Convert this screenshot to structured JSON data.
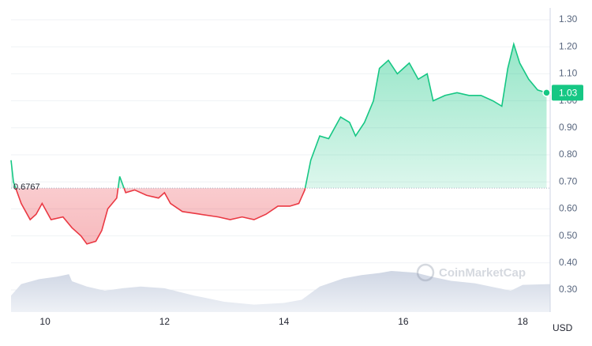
{
  "chart_data": {
    "type": "line",
    "currency": "USD",
    "watermark": "CoinMarketCap",
    "x": [
      9.43,
      9.47,
      9.6,
      9.75,
      9.85,
      9.95,
      10.1,
      10.3,
      10.45,
      10.6,
      10.7,
      10.85,
      10.95,
      11.05,
      11.2,
      11.25,
      11.35,
      11.5,
      11.7,
      11.9,
      12.0,
      12.1,
      12.3,
      12.6,
      12.9,
      13.1,
      13.3,
      13.5,
      13.7,
      13.9,
      14.1,
      14.25,
      14.35,
      14.45,
      14.6,
      14.75,
      14.95,
      15.1,
      15.2,
      15.35,
      15.5,
      15.6,
      15.75,
      15.9,
      16.1,
      16.25,
      16.4,
      16.5,
      16.7,
      16.9,
      17.1,
      17.3,
      17.5,
      17.65,
      17.75,
      17.85,
      17.95,
      18.1,
      18.25,
      18.4
    ],
    "values": [
      0.78,
      0.7,
      0.62,
      0.56,
      0.58,
      0.62,
      0.56,
      0.57,
      0.53,
      0.5,
      0.47,
      0.48,
      0.52,
      0.6,
      0.64,
      0.72,
      0.66,
      0.67,
      0.65,
      0.64,
      0.66,
      0.62,
      0.59,
      0.58,
      0.57,
      0.56,
      0.57,
      0.56,
      0.58,
      0.61,
      0.61,
      0.62,
      0.67,
      0.78,
      0.87,
      0.86,
      0.94,
      0.92,
      0.87,
      0.92,
      1.0,
      1.12,
      1.15,
      1.1,
      1.14,
      1.08,
      1.1,
      1.0,
      1.02,
      1.03,
      1.02,
      1.02,
      1.0,
      0.98,
      1.12,
      1.21,
      1.14,
      1.08,
      1.04,
      1.03
    ],
    "baseline": 0.6767,
    "current_price": 1.03,
    "up_color": "#16c784",
    "down_color": "#ea3943",
    "volume": {
      "x": [
        9.43,
        9.6,
        9.9,
        10.2,
        10.4,
        10.45,
        10.7,
        11.0,
        11.3,
        11.6,
        12.0,
        12.5,
        13.0,
        13.5,
        14.0,
        14.3,
        14.6,
        15.0,
        15.3,
        15.6,
        15.8,
        16.2,
        16.5,
        16.8,
        17.2,
        17.6,
        17.8,
        18.0,
        18.46
      ],
      "values": [
        40,
        68,
        80,
        86,
        92,
        75,
        62,
        52,
        58,
        62,
        58,
        40,
        25,
        18,
        22,
        30,
        62,
        82,
        90,
        95,
        100,
        96,
        85,
        76,
        70,
        58,
        52,
        66,
        68
      ]
    },
    "xlim": [
      9.43,
      18.46
    ],
    "ylim": [
      0.218,
      1.344
    ],
    "xticks": [
      10,
      12,
      14,
      16,
      18
    ],
    "yticks": [
      {
        "value": 0.3,
        "label": "0.30"
      },
      {
        "value": 0.4,
        "label": "0.40"
      },
      {
        "value": 0.5,
        "label": "0.50"
      },
      {
        "value": 0.6,
        "label": "0.60"
      },
      {
        "value": 0.7,
        "label": "0.70"
      },
      {
        "value": 0.8,
        "label": "0.80"
      },
      {
        "value": 0.9,
        "label": "0.90"
      },
      {
        "value": 1.0,
        "label": "1.00"
      },
      {
        "value": 1.1,
        "label": "1.10"
      },
      {
        "value": 1.2,
        "label": "1.20"
      },
      {
        "value": 1.3,
        "label": "1.30"
      }
    ],
    "grid": true
  }
}
